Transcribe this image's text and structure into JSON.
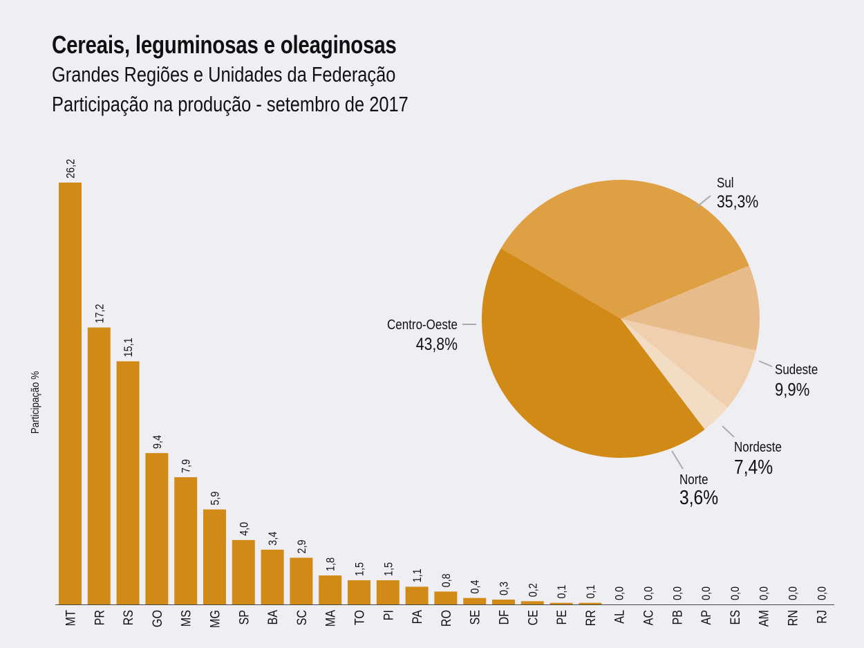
{
  "header": {
    "title": "Cereais, leguminosas e oleaginosas",
    "subtitle1": "Grandes Regiões e Unidades da Federação",
    "subtitle2": "Participação na produção - setembro de 2017"
  },
  "colors": {
    "background": "#efeef3",
    "bar": "#d18a16",
    "pie": [
      "#dea043",
      "#e8bc8a",
      "#efcfad",
      "#f3dcc4",
      "#d18a16"
    ]
  },
  "chart_data": [
    {
      "type": "bar",
      "ylabel": "Participação %",
      "categories": [
        "MT",
        "PR",
        "RS",
        "GO",
        "MS",
        "MG",
        "SP",
        "BA",
        "SC",
        "MA",
        "TO",
        "PI",
        "PA",
        "RO",
        "SE",
        "DF",
        "CE",
        "PE",
        "RR",
        "AL",
        "AC",
        "PB",
        "AP",
        "ES",
        "AM",
        "RN",
        "RJ"
      ],
      "values": [
        26.2,
        17.2,
        15.1,
        9.4,
        7.9,
        5.9,
        4.0,
        3.4,
        2.9,
        1.8,
        1.5,
        1.5,
        1.1,
        0.8,
        0.4,
        0.3,
        0.2,
        0.1,
        0.1,
        0.0,
        0.0,
        0.0,
        0.0,
        0.0,
        0.0,
        0.0,
        0.0
      ],
      "value_labels": [
        "26,2",
        "17,2",
        "15,1",
        "9,4",
        "7,9",
        "5,9",
        "4,0",
        "3,4",
        "2,9",
        "1,8",
        "1,5",
        "1,5",
        "1,1",
        "0,8",
        "0,4",
        "0,3",
        "0,2",
        "0,1",
        "0,1",
        "0,0",
        "0,0",
        "0,0",
        "0,0",
        "0,0",
        "0,0",
        "0,0",
        "0,0"
      ],
      "grid": false
    },
    {
      "type": "pie",
      "slices": [
        {
          "name": "Sul",
          "value": 35.3,
          "label": "35,3%"
        },
        {
          "name": "Sudeste",
          "value": 9.9,
          "label": "9,9%"
        },
        {
          "name": "Nordeste",
          "value": 7.4,
          "label": "7,4%"
        },
        {
          "name": "Norte",
          "value": 3.6,
          "label": "3,6%"
        },
        {
          "name": "Centro-Oeste",
          "value": 43.8,
          "label": "43,8%"
        }
      ]
    }
  ]
}
